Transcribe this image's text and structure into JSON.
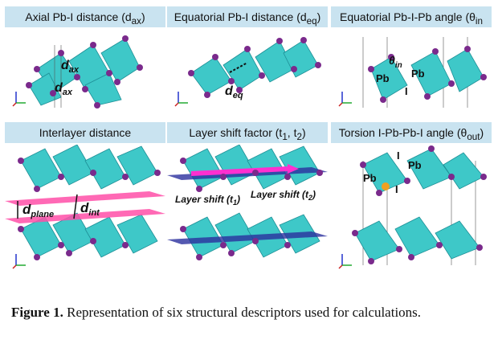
{
  "figure": {
    "panels": [
      {
        "title": "Axial Pb-I distance  (d",
        "title_sub": "ax",
        "title_end": ")",
        "labels": [
          "d",
          "ax",
          "d",
          "ax"
        ]
      },
      {
        "title": "Equatorial  Pb-I distance (d",
        "title_sub": "eq",
        "title_end": ")",
        "labels": [
          "d",
          "eq"
        ]
      },
      {
        "title": "Equatorial Pb-I-Pb angle (θ",
        "title_sub": "in",
        "title_end": "",
        "labels": [
          "θ",
          "in",
          "Pb",
          "Pb",
          "I"
        ]
      },
      {
        "title": "Interlayer distance",
        "title_sub": "",
        "title_end": "",
        "labels": [
          "d",
          "plane",
          "d",
          "int"
        ]
      },
      {
        "title": "Layer shift factor (t",
        "title_sub": "1",
        "title_mid": ", t",
        "title_sub2": "2",
        "title_end": ")",
        "labels": [
          "Layer shift  (t",
          "1",
          ")",
          "Layer shift  (t",
          "2",
          ")"
        ]
      },
      {
        "title": "Torsion I-Pb-Pb-I angle (θ",
        "title_sub": "out",
        "title_end": ")",
        "labels": [
          "Pb",
          "Pb",
          "I",
          "I"
        ]
      }
    ],
    "caption_label": "Figure 1.",
    "caption_text": " Representation of six structural descriptors used for calculations."
  },
  "colors": {
    "title_bg": "#c9e3f0",
    "octahedron": "#3ec8c8",
    "iodine": "#7a2a8c",
    "plane_pink": "#ff4fa8",
    "plane_blue": "#2b2f9e"
  }
}
